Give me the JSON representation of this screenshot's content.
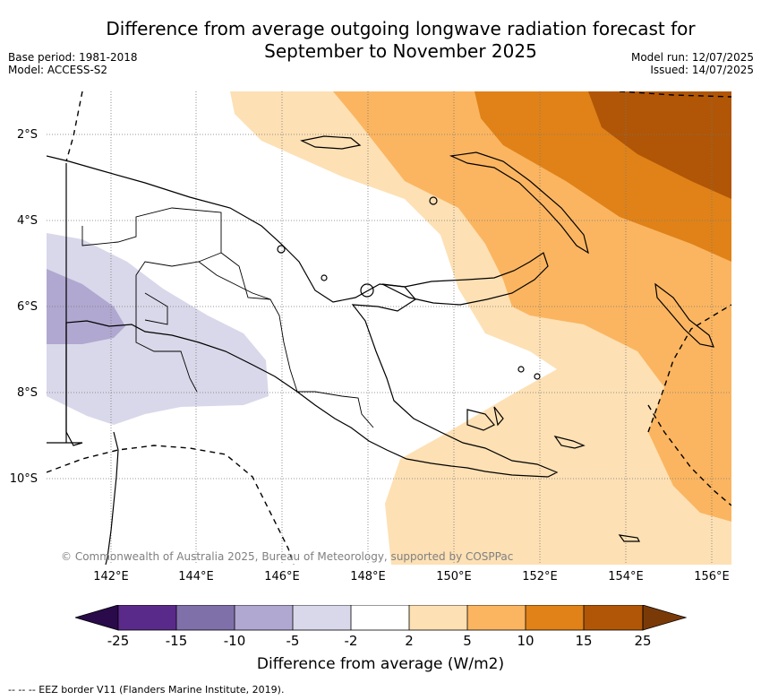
{
  "header": {
    "title_line1": "Difference from average outgoing longwave radiation forecast for",
    "title_line2": "September to November 2025",
    "base_period": "Base period: 1981-2018",
    "model": "Model: ACCESS-S2",
    "model_run": "Model run: 12/07/2025",
    "issued": "Issued: 14/07/2025"
  },
  "map": {
    "lat_labels": [
      "2°S",
      "4°S",
      "6°S",
      "8°S",
      "10°S"
    ],
    "lon_labels": [
      "142°E",
      "144°E",
      "146°E",
      "148°E",
      "150°E",
      "152°E",
      "154°E",
      "156°E"
    ],
    "copyright": "© Commonwealth of Australia 2025, Bureau of Meteorology, supported by COSPPac",
    "colors": {
      "neg25": "#2a0a4a",
      "neg15_25": "#5a2a8a",
      "neg10_15": "#8070aa",
      "neg5_10": "#b0a8d0",
      "neg2_5": "#d8d8ea",
      "neutral": "#ffffff",
      "pos2_5": "#fde0b4",
      "pos5_10": "#fbb560",
      "pos10_15": "#e08218",
      "pos15_25": "#b05606",
      "pos25": "#7a3a08"
    }
  },
  "colorbar": {
    "labels": [
      "-25",
      "-15",
      "-10",
      "-5",
      "-2",
      "2",
      "5",
      "10",
      "15",
      "25"
    ],
    "title": "Difference from average (W/m2)"
  },
  "footnote": "-- -- -- EEZ border V11 (Flanders Marine Institute, 2019)."
}
